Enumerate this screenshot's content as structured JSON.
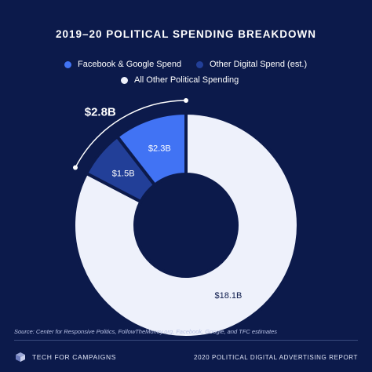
{
  "chart_data": {
    "type": "pie",
    "title": "2019–20 POLITICAL SPENDING BREAKDOWN",
    "categories": [
      "Facebook & Google Spend",
      "Other Digital Spend (est.)",
      "All Other Political Spending"
    ],
    "values": [
      2.3,
      1.5,
      18.1
    ],
    "data_labels": [
      "$2.3B",
      "$1.5B",
      "$18.1B"
    ],
    "colors": [
      "#4173f4",
      "#223f98",
      "#eef1fb"
    ],
    "annotation": "$2.8B",
    "legend_placement": "top",
    "donut": true
  },
  "source": "Source: Center for Responsive Politics, FollowTheMoney.org, Facebook, Google, and TFC estimates",
  "footer": {
    "left": "TECH FOR CAMPAIGNS",
    "right": "2020 POLITICAL DIGITAL ADVERTISING REPORT",
    "logo_icon": "tfc-logo-icon"
  }
}
